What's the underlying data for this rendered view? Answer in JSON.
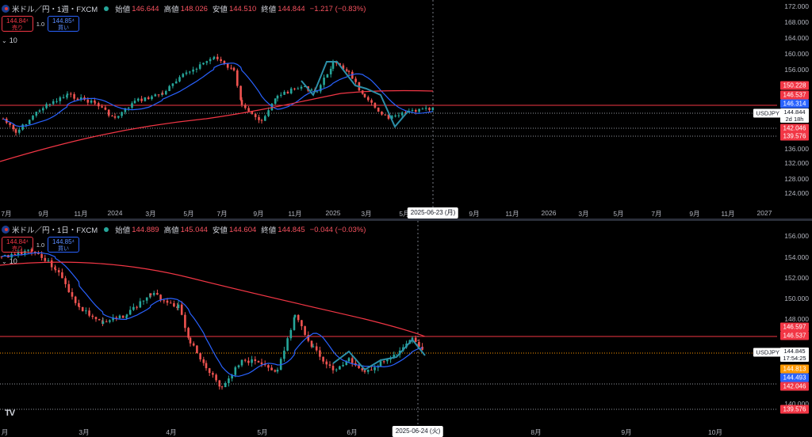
{
  "pane1": {
    "symbol": "米ドル／円・1週・FXCM",
    "ohlc": {
      "o_label": "始値",
      "o": "146.644",
      "h_label": "高値",
      "h": "148.026",
      "l_label": "安値",
      "l": "144.510",
      "c_label": "終値",
      "c": "144.844",
      "chg": "−1.217 (−0.83%)"
    },
    "sell_price": "144.84⁴",
    "sell_label": "売り",
    "spread": "1.0",
    "buy_price": "144.85⁴",
    "buy_label": "買い",
    "indicator": "10",
    "price_ticks": [
      "172.000",
      "168.000",
      "164.000",
      "160.000",
      "156.000",
      "136.000",
      "132.000",
      "128.000",
      "124.000"
    ],
    "price_tags": [
      {
        "text": "150.228",
        "color": "#f23645"
      },
      {
        "text": "146.537",
        "color": "#f23645"
      },
      {
        "text": "146.314",
        "color": "#2962ff"
      },
      {
        "text": "142.046",
        "color": "#f23645"
      },
      {
        "text": "139.576",
        "color": "#f23645"
      }
    ],
    "symbol_tag": "USDJPY",
    "last_price": "144.844",
    "countdown": "2d 18h",
    "time_ticks": [
      "7月",
      "9月",
      "11月",
      "2024",
      "3月",
      "5月",
      "7月",
      "9月",
      "11月",
      "2025",
      "3月",
      "5月",
      "9月",
      "11月",
      "2026",
      "3月",
      "5月",
      "7月",
      "9月",
      "11月",
      "2027"
    ],
    "cursor_date": "2025-06-23 (月)"
  },
  "pane2": {
    "symbol": "米ドル／円・1日・FXCM",
    "ohlc": {
      "o_label": "始値",
      "o": "144.889",
      "h_label": "高値",
      "h": "145.044",
      "l_label": "安値",
      "l": "144.604",
      "c_label": "終値",
      "c": "144.845",
      "chg": "−0.044 (−0.03%)"
    },
    "sell_price": "144.84⁴",
    "sell_label": "売り",
    "spread": "1.0",
    "buy_price": "144.85⁴",
    "buy_label": "買い",
    "indicator": "10",
    "price_ticks": [
      "156.000",
      "154.000",
      "152.000",
      "150.000",
      "148.000",
      "146.000",
      "140.000"
    ],
    "price_tags": [
      {
        "text": "146.597",
        "color": "#f23645"
      },
      {
        "text": "146.537",
        "color": "#f23645"
      },
      {
        "text": "144.813",
        "color": "#ff9800"
      },
      {
        "text": "144.493",
        "color": "#2962ff"
      },
      {
        "text": "142.046",
        "color": "#f23645"
      },
      {
        "text": "139.576",
        "color": "#f23645"
      }
    ],
    "symbol_tag": "USDJPY",
    "last_price": "144.845",
    "countdown": "17:54:25",
    "time_ticks": [
      "月",
      "3月",
      "4月",
      "5月",
      "6月",
      "8月",
      "9月",
      "10月"
    ],
    "cursor_date": "2025-06-24 (火)"
  },
  "colors": {
    "up": "#26a69a",
    "down": "#ef5350",
    "ma_fast": "#2962ff",
    "ma_slow": "#f23645",
    "pattern": "#2c8fa8"
  }
}
